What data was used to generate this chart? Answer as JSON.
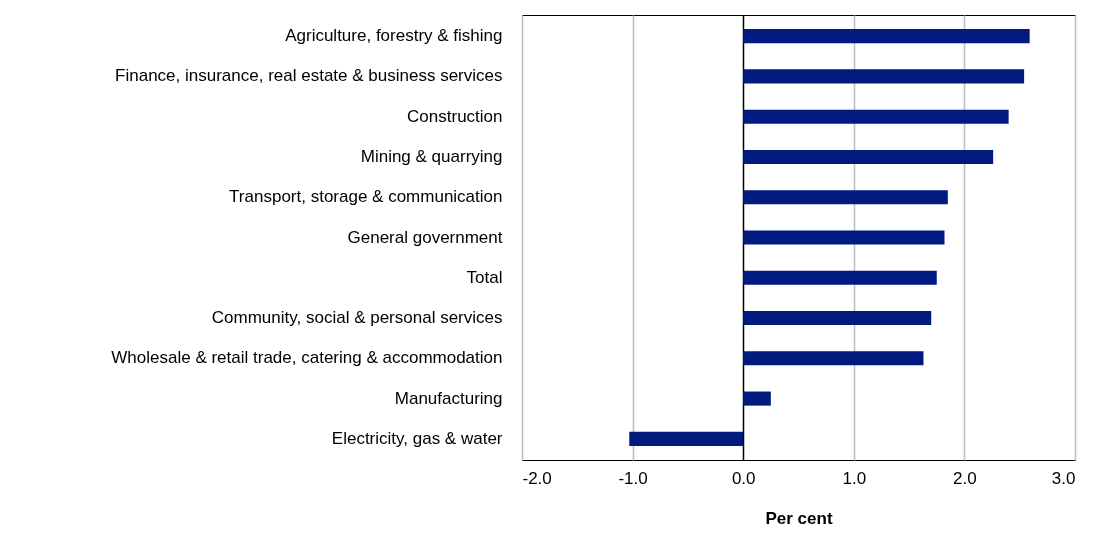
{
  "chart_data": {
    "type": "bar",
    "orientation": "horizontal",
    "xlabel": "Per cent",
    "categories": [
      "Agriculture, forestry & fishing",
      "Finance, insurance, real estate & business services",
      "Construction",
      "Mining & quarrying",
      "Transport, storage & communication",
      "General government",
      "Total",
      "Community, social & personal services",
      "Wholesale & retail trade, catering & accommodation",
      "Manufacturing",
      "Electricity, gas & water"
    ],
    "values": [
      2.59,
      2.54,
      2.4,
      2.26,
      1.85,
      1.82,
      1.75,
      1.7,
      1.63,
      0.25,
      -1.03
    ],
    "color": "#001a80",
    "xlim": [
      -2,
      3
    ],
    "xticks": [
      {
        "value": -2,
        "label": "-2.0"
      },
      {
        "value": -1,
        "label": "-1.0"
      },
      {
        "value": 0,
        "label": "0.0"
      },
      {
        "value": 1,
        "label": "1.0"
      },
      {
        "value": 2,
        "label": "2.0"
      },
      {
        "value": 3,
        "label": "3.0"
      }
    ],
    "grid": "x"
  }
}
